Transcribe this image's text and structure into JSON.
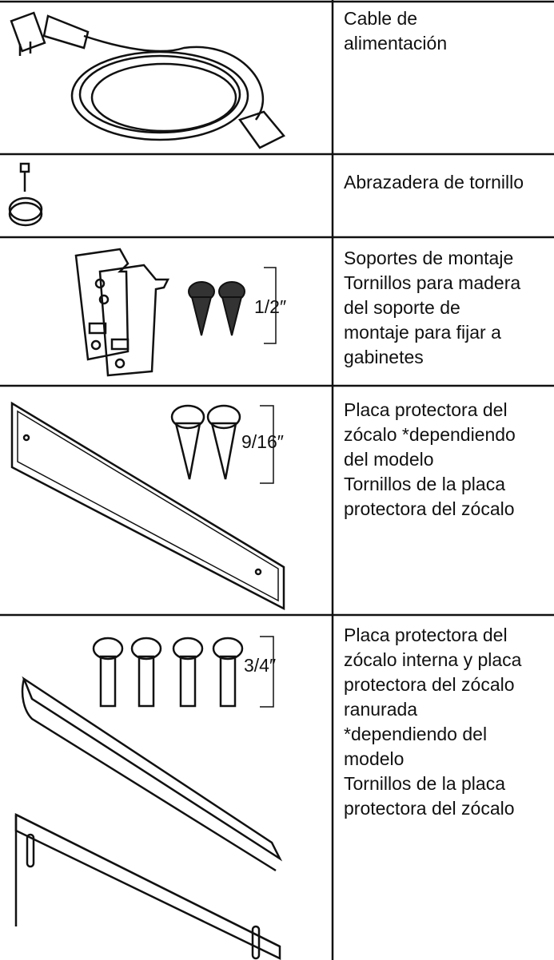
{
  "rows": [
    {
      "lines": [
        "Cable de",
        "alimentación"
      ]
    },
    {
      "lines": [
        "Abrazadera de tornillo"
      ]
    },
    {
      "lines": [
        "Soportes de montaje",
        "Tornillos para madera",
        "del soporte de",
        "montaje para fijar a",
        "gabinetes"
      ],
      "size": "1/2″"
    },
    {
      "lines": [
        "Placa protectora del",
        "zócalo *dependiendo",
        "del modelo",
        "Tornillos de la placa",
        "protectora del zócalo"
      ],
      "size": "9/16″"
    },
    {
      "lines": [
        "Placa protectora del",
        "zócalo interna y placa",
        "protectora del zócalo",
        "ranurada",
        "*dependiendo del",
        "modelo",
        "Tornillos de la placa",
        "protectora del zócalo"
      ],
      "size": "3/4″"
    }
  ]
}
